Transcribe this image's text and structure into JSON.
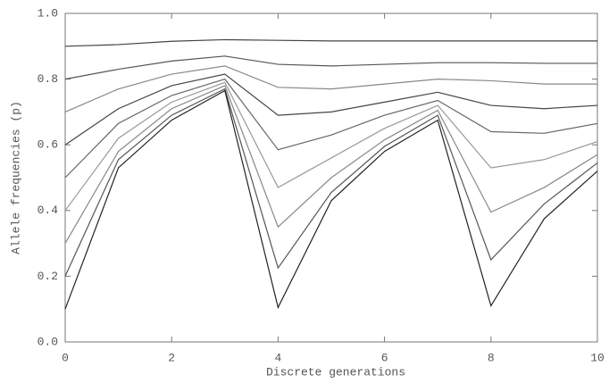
{
  "chart_data": {
    "type": "line",
    "xlabel": "Discrete generations",
    "ylabel": "Allele frequencies (p)",
    "x": [
      0,
      1,
      2,
      3,
      4,
      5,
      6,
      7,
      8,
      9,
      10
    ],
    "series": [
      {
        "color": "#444444",
        "values": [
          0.9,
          0.905,
          0.915,
          0.92,
          0.918,
          0.916,
          0.916,
          0.916,
          0.916,
          0.916,
          0.916
        ]
      },
      {
        "color": "#555555",
        "values": [
          0.8,
          0.83,
          0.855,
          0.87,
          0.845,
          0.84,
          0.845,
          0.85,
          0.85,
          0.848,
          0.848
        ]
      },
      {
        "color": "#888888",
        "values": [
          0.7,
          0.77,
          0.815,
          0.84,
          0.775,
          0.77,
          0.785,
          0.8,
          0.795,
          0.785,
          0.785
        ]
      },
      {
        "color": "#444444",
        "values": [
          0.6,
          0.71,
          0.78,
          0.815,
          0.69,
          0.7,
          0.73,
          0.76,
          0.72,
          0.71,
          0.72
        ]
      },
      {
        "color": "#666666",
        "values": [
          0.5,
          0.665,
          0.75,
          0.8,
          0.585,
          0.63,
          0.69,
          0.735,
          0.64,
          0.635,
          0.665
        ]
      },
      {
        "color": "#999999",
        "values": [
          0.4,
          0.62,
          0.73,
          0.79,
          0.47,
          0.56,
          0.65,
          0.72,
          0.53,
          0.555,
          0.61
        ]
      },
      {
        "color": "#888888",
        "values": [
          0.3,
          0.58,
          0.71,
          0.78,
          0.35,
          0.5,
          0.615,
          0.705,
          0.395,
          0.47,
          0.57
        ]
      },
      {
        "color": "#555555",
        "values": [
          0.2,
          0.555,
          0.69,
          0.77,
          0.225,
          0.455,
          0.595,
          0.69,
          0.25,
          0.42,
          0.545
        ]
      },
      {
        "color": "#222222",
        "values": [
          0.1,
          0.53,
          0.675,
          0.765,
          0.105,
          0.43,
          0.58,
          0.675,
          0.11,
          0.375,
          0.52
        ]
      }
    ],
    "xlim": [
      0,
      10
    ],
    "xticks": [
      0,
      2,
      4,
      6,
      8,
      10
    ],
    "ylim": [
      0,
      1
    ],
    "yticks": [
      {
        "value": 0,
        "label": "0.0"
      },
      0.2,
      0.4,
      0.6,
      0.8,
      {
        "value": 1,
        "label": "1.0"
      }
    ],
    "grid": false
  }
}
